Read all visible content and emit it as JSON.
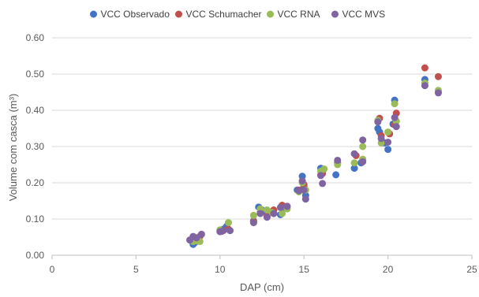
{
  "chart_data": {
    "type": "scatter",
    "xlabel": "DAP (cm)",
    "ylabel": "Volume com casca (m³)",
    "xlim": [
      0,
      25
    ],
    "ylim": [
      0,
      0.6
    ],
    "x_ticks": [
      "0",
      "5",
      "10",
      "15",
      "20",
      "25"
    ],
    "y_ticks": [
      "0.00",
      "0.10",
      "0.20",
      "0.30",
      "0.40",
      "0.50",
      "0.60"
    ],
    "grid": "horizontal",
    "legend_position": "top",
    "series": [
      {
        "name": "VCC Observado",
        "color": "#4472C4",
        "points": [
          [
            8.3,
            0.04
          ],
          [
            8.4,
            0.03
          ],
          [
            8.5,
            0.035
          ],
          [
            8.7,
            0.042
          ],
          [
            10.0,
            0.068
          ],
          [
            10.2,
            0.072
          ],
          [
            10.4,
            0.08
          ],
          [
            12.0,
            0.095
          ],
          [
            12.3,
            0.133
          ],
          [
            12.5,
            0.125
          ],
          [
            12.8,
            0.115
          ],
          [
            13.1,
            0.12
          ],
          [
            13.6,
            0.112
          ],
          [
            13.9,
            0.13
          ],
          [
            14.6,
            0.18
          ],
          [
            14.9,
            0.218
          ],
          [
            15.0,
            0.19
          ],
          [
            15.1,
            0.165
          ],
          [
            16.0,
            0.24
          ],
          [
            16.1,
            0.23
          ],
          [
            16.9,
            0.222
          ],
          [
            18.0,
            0.24
          ],
          [
            18.4,
            0.255
          ],
          [
            19.4,
            0.35
          ],
          [
            19.5,
            0.34
          ],
          [
            19.8,
            0.31
          ],
          [
            20.0,
            0.292
          ],
          [
            20.3,
            0.362
          ],
          [
            20.4,
            0.428
          ],
          [
            22.2,
            0.485
          ],
          [
            23.0,
            0.45
          ]
        ]
      },
      {
        "name": "VCC Schumacher",
        "color": "#C0504D",
        "points": [
          [
            8.4,
            0.042
          ],
          [
            8.5,
            0.048
          ],
          [
            8.8,
            0.052
          ],
          [
            10.1,
            0.066
          ],
          [
            10.5,
            0.072
          ],
          [
            12.0,
            0.093
          ],
          [
            12.4,
            0.118
          ],
          [
            12.8,
            0.108
          ],
          [
            13.2,
            0.125
          ],
          [
            13.7,
            0.138
          ],
          [
            14.0,
            0.135
          ],
          [
            14.7,
            0.18
          ],
          [
            15.0,
            0.195
          ],
          [
            16.0,
            0.222
          ],
          [
            16.1,
            0.225
          ],
          [
            17.0,
            0.255
          ],
          [
            18.1,
            0.275
          ],
          [
            18.5,
            0.262
          ],
          [
            19.5,
            0.378
          ],
          [
            19.6,
            0.33
          ],
          [
            20.1,
            0.335
          ],
          [
            20.4,
            0.36
          ],
          [
            20.5,
            0.392
          ],
          [
            22.2,
            0.517
          ],
          [
            23.0,
            0.493
          ]
        ]
      },
      {
        "name": "VCC RNA",
        "color": "#9BBB59",
        "points": [
          [
            8.4,
            0.038
          ],
          [
            8.6,
            0.04
          ],
          [
            8.8,
            0.038
          ],
          [
            10.0,
            0.07
          ],
          [
            10.5,
            0.09
          ],
          [
            12.0,
            0.11
          ],
          [
            12.4,
            0.128
          ],
          [
            12.8,
            0.125
          ],
          [
            13.1,
            0.118
          ],
          [
            13.7,
            0.115
          ],
          [
            14.0,
            0.128
          ],
          [
            14.7,
            0.175
          ],
          [
            14.9,
            0.2
          ],
          [
            15.1,
            0.18
          ],
          [
            16.0,
            0.232
          ],
          [
            16.2,
            0.238
          ],
          [
            17.0,
            0.25
          ],
          [
            18.0,
            0.255
          ],
          [
            18.5,
            0.3
          ],
          [
            18.5,
            0.265
          ],
          [
            19.4,
            0.372
          ],
          [
            19.6,
            0.31
          ],
          [
            20.0,
            0.34
          ],
          [
            20.4,
            0.418
          ],
          [
            20.5,
            0.37
          ],
          [
            22.2,
            0.475
          ],
          [
            23.0,
            0.455
          ]
        ]
      },
      {
        "name": "VCC MVS",
        "color": "#8064A2",
        "points": [
          [
            8.2,
            0.042
          ],
          [
            8.4,
            0.052
          ],
          [
            8.6,
            0.048
          ],
          [
            8.9,
            0.058
          ],
          [
            10.0,
            0.065
          ],
          [
            10.2,
            0.068
          ],
          [
            10.6,
            0.068
          ],
          [
            12.0,
            0.09
          ],
          [
            12.4,
            0.115
          ],
          [
            12.8,
            0.105
          ],
          [
            13.2,
            0.115
          ],
          [
            13.6,
            0.132
          ],
          [
            14.0,
            0.135
          ],
          [
            14.7,
            0.178
          ],
          [
            14.9,
            0.205
          ],
          [
            15.0,
            0.18
          ],
          [
            15.1,
            0.155
          ],
          [
            16.0,
            0.22
          ],
          [
            16.1,
            0.198
          ],
          [
            17.0,
            0.262
          ],
          [
            18.0,
            0.28
          ],
          [
            18.5,
            0.318
          ],
          [
            18.5,
            0.258
          ],
          [
            19.4,
            0.368
          ],
          [
            19.6,
            0.322
          ],
          [
            20.0,
            0.312
          ],
          [
            20.4,
            0.38
          ],
          [
            20.5,
            0.355
          ],
          [
            22.2,
            0.468
          ],
          [
            23.0,
            0.448
          ]
        ]
      }
    ]
  }
}
